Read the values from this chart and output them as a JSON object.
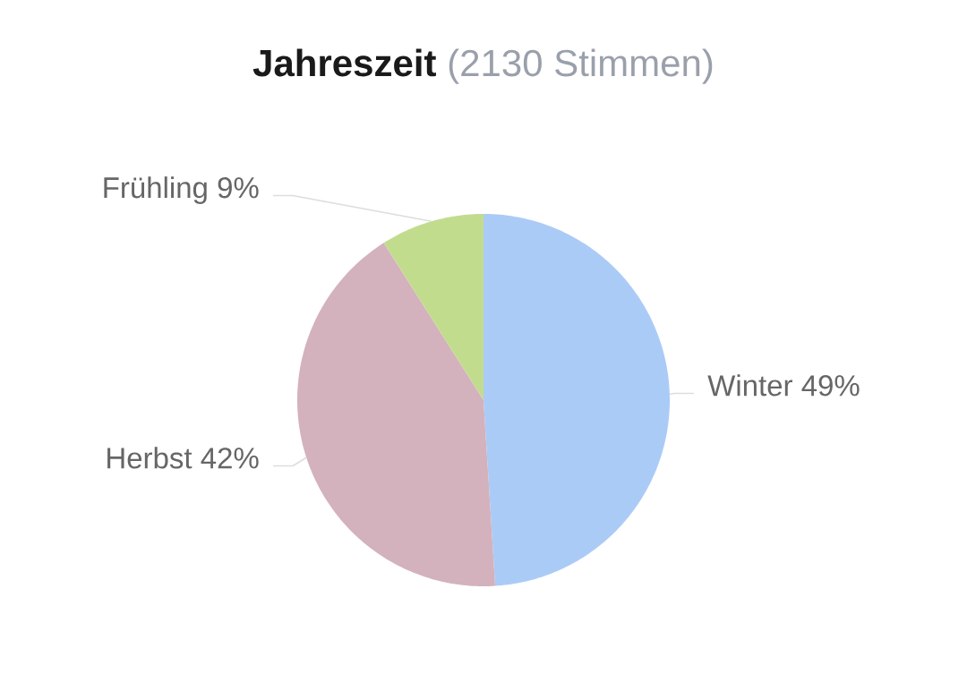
{
  "chart_data": {
    "type": "pie",
    "title": "Jahreszeit",
    "subtitle": "(2130 Stimmen)",
    "categories": [
      "Winter",
      "Herbst",
      "Frühling"
    ],
    "values": [
      49,
      42,
      9
    ],
    "colors": [
      "#abcbf7",
      "#d3b2bd",
      "#c2dc8e"
    ],
    "value_labels": [
      "49%",
      "42%",
      "9%"
    ]
  }
}
